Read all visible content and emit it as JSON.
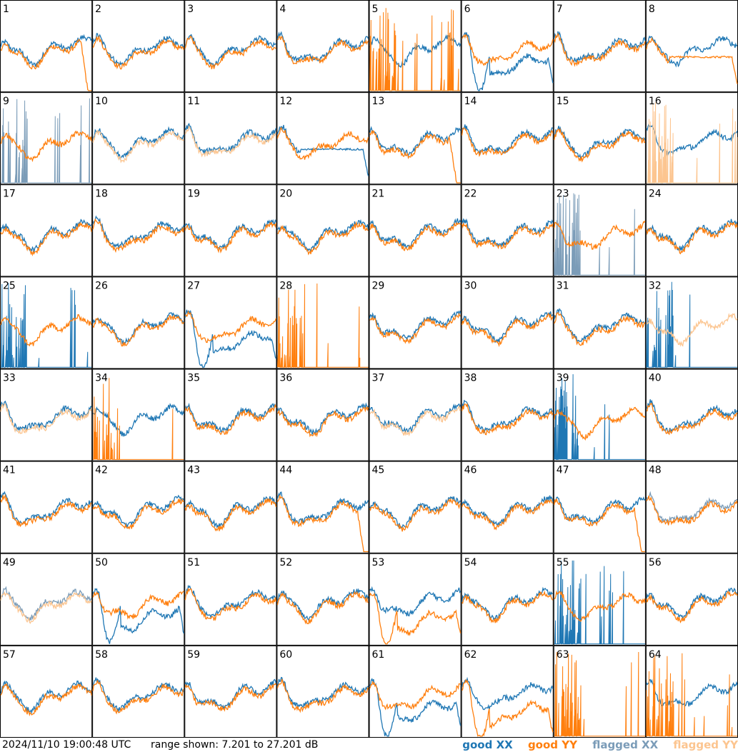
{
  "footer": {
    "timestamp": "2024/11/10 19:00:48 UTC",
    "range_text": "range shown: 7.201 to 27.201 dB"
  },
  "legend": [
    {
      "label": "good XX",
      "color": "#1f77b4"
    },
    {
      "label": "good YY",
      "color": "#ff7f0e"
    },
    {
      "label": "flagged XX",
      "color": "#7b9cb8"
    },
    {
      "label": "flagged YY",
      "color": "#fcc590"
    }
  ],
  "chart_data": {
    "type": "line",
    "grid": "8x8 small multiples, one panel per antenna/tile",
    "y_unit": "dB",
    "ylim": [
      7.201,
      27.201
    ],
    "panel_labels": [
      "1",
      "2",
      "3",
      "4",
      "5",
      "6",
      "7",
      "8",
      "9",
      "10",
      "11",
      "12",
      "13",
      "14",
      "15",
      "16",
      "17",
      "18",
      "19",
      "20",
      "21",
      "22",
      "23",
      "24",
      "25",
      "26",
      "27",
      "28",
      "29",
      "30",
      "31",
      "32",
      "33",
      "34",
      "35",
      "36",
      "37",
      "38",
      "39",
      "40",
      "41",
      "42",
      "43",
      "44",
      "45",
      "46",
      "47",
      "48",
      "49",
      "50",
      "51",
      "52",
      "53",
      "54",
      "55",
      "56",
      "57",
      "58",
      "59",
      "60",
      "61",
      "62",
      "63",
      "64"
    ],
    "series_names": [
      "good XX",
      "good YY",
      "flagged XX",
      "flagged YY"
    ],
    "panels": [
      {
        "n": 1,
        "xx": "normal",
        "yy": "rolloff"
      },
      {
        "n": 2,
        "xx": "normal",
        "yy": "normal"
      },
      {
        "n": 3,
        "xx": "normal",
        "yy": "normal"
      },
      {
        "n": 4,
        "xx": "normal",
        "yy": "normal"
      },
      {
        "n": 5,
        "xx": "normal",
        "yy": "spiky"
      },
      {
        "n": 6,
        "xx": "dip",
        "yy": "normal"
      },
      {
        "n": 7,
        "xx": "normal",
        "yy": "normal"
      },
      {
        "n": 8,
        "xx": "normal",
        "yy": "flat"
      },
      {
        "n": 9,
        "xx": "flagged_spiky",
        "yy": "normal"
      },
      {
        "n": 10,
        "xx": "normal",
        "yy": "flagged_normal"
      },
      {
        "n": 11,
        "xx": "normal",
        "yy": "flagged_normal"
      },
      {
        "n": 12,
        "xx": "flat",
        "yy": "normal"
      },
      {
        "n": 13,
        "xx": "normal",
        "yy": "rolloff"
      },
      {
        "n": 14,
        "xx": "normal",
        "yy": "normal"
      },
      {
        "n": 15,
        "xx": "normal",
        "yy": "normal"
      },
      {
        "n": 16,
        "xx": "normal",
        "yy": "flagged_spiky"
      },
      {
        "n": 17,
        "xx": "normal",
        "yy": "normal"
      },
      {
        "n": 18,
        "xx": "normal",
        "yy": "normal"
      },
      {
        "n": 19,
        "xx": "normal",
        "yy": "normal"
      },
      {
        "n": 20,
        "xx": "normal",
        "yy": "normal"
      },
      {
        "n": 21,
        "xx": "normal",
        "yy": "normal"
      },
      {
        "n": 22,
        "xx": "normal",
        "yy": "normal"
      },
      {
        "n": 23,
        "xx": "flagged_spiky",
        "yy": "normal"
      },
      {
        "n": 24,
        "xx": "normal",
        "yy": "normal"
      },
      {
        "n": 25,
        "xx": "spiky",
        "yy": "normal"
      },
      {
        "n": 26,
        "xx": "normal",
        "yy": "normal"
      },
      {
        "n": 27,
        "xx": "dip",
        "yy": "normal"
      },
      {
        "n": 28,
        "xx": "none",
        "yy": "spiky"
      },
      {
        "n": 29,
        "xx": "normal",
        "yy": "normal"
      },
      {
        "n": 30,
        "xx": "normal",
        "yy": "normal"
      },
      {
        "n": 31,
        "xx": "normal",
        "yy": "normal"
      },
      {
        "n": 32,
        "xx": "spiky",
        "yy": "flagged_normal"
      },
      {
        "n": 33,
        "xx": "normal",
        "yy": "flagged_normal"
      },
      {
        "n": 34,
        "xx": "normal",
        "yy": "spiky"
      },
      {
        "n": 35,
        "xx": "normal",
        "yy": "normal"
      },
      {
        "n": 36,
        "xx": "normal",
        "yy": "normal"
      },
      {
        "n": 37,
        "xx": "normal",
        "yy": "flagged_normal"
      },
      {
        "n": 38,
        "xx": "normal",
        "yy": "normal"
      },
      {
        "n": 39,
        "xx": "spiky",
        "yy": "normal"
      },
      {
        "n": 40,
        "xx": "normal",
        "yy": "normal"
      },
      {
        "n": 41,
        "xx": "normal",
        "yy": "normal"
      },
      {
        "n": 42,
        "xx": "normal",
        "yy": "normal"
      },
      {
        "n": 43,
        "xx": "normal",
        "yy": "normal"
      },
      {
        "n": 44,
        "xx": "normal",
        "yy": "rolloff"
      },
      {
        "n": 45,
        "xx": "normal",
        "yy": "normal"
      },
      {
        "n": 46,
        "xx": "normal",
        "yy": "normal"
      },
      {
        "n": 47,
        "xx": "normal",
        "yy": "rolloff"
      },
      {
        "n": 48,
        "xx": "flagged_normal",
        "yy": "normal"
      },
      {
        "n": 49,
        "xx": "flagged_normal",
        "yy": "flagged_normal"
      },
      {
        "n": 50,
        "xx": "dip",
        "yy": "normal"
      },
      {
        "n": 51,
        "xx": "normal",
        "yy": "normal"
      },
      {
        "n": 52,
        "xx": "normal",
        "yy": "normal"
      },
      {
        "n": 53,
        "xx": "normal",
        "yy": "dip"
      },
      {
        "n": 54,
        "xx": "normal",
        "yy": "normal"
      },
      {
        "n": 55,
        "xx": "spiky",
        "yy": "normal"
      },
      {
        "n": 56,
        "xx": "normal",
        "yy": "normal"
      },
      {
        "n": 57,
        "xx": "normal",
        "yy": "normal"
      },
      {
        "n": 58,
        "xx": "normal",
        "yy": "normal"
      },
      {
        "n": 59,
        "xx": "normal",
        "yy": "normal"
      },
      {
        "n": 60,
        "xx": "normal",
        "yy": "normal"
      },
      {
        "n": 61,
        "xx": "dip",
        "yy": "normal"
      },
      {
        "n": 62,
        "xx": "normal",
        "yy": "dip"
      },
      {
        "n": 63,
        "xx": "none",
        "yy": "spiky"
      },
      {
        "n": 64,
        "xx": "normal",
        "yy": "spiky"
      }
    ]
  }
}
